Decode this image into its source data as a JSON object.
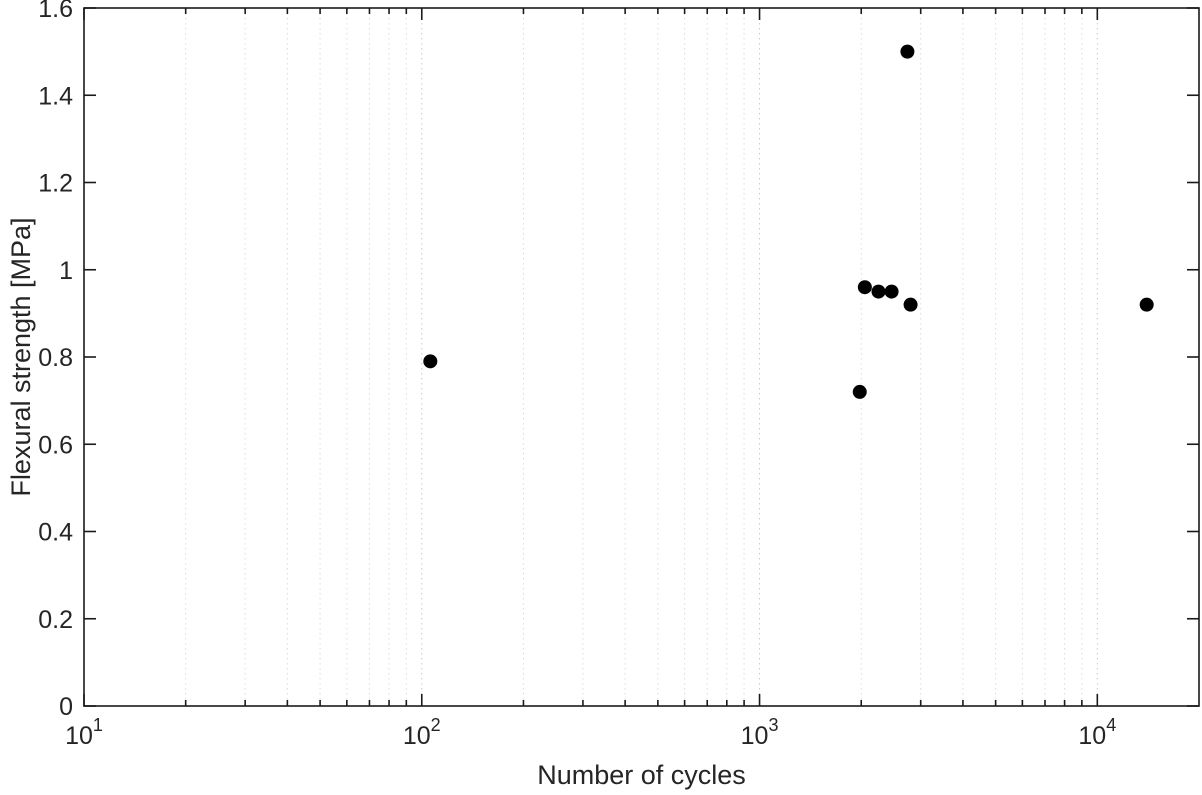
{
  "chart_data": {
    "type": "scatter",
    "title": "",
    "xlabel": "Number of cycles",
    "ylabel": "Flexural strength [MPa]",
    "xscale": "log",
    "yscale": "linear",
    "xlim": [
      10,
      20000
    ],
    "ylim": [
      0,
      1.6
    ],
    "xticks": [
      10,
      100,
      1000,
      10000
    ],
    "xtick_labels": [
      {
        "base": "10",
        "exp": "1"
      },
      {
        "base": "10",
        "exp": "2"
      },
      {
        "base": "10",
        "exp": "3"
      },
      {
        "base": "10",
        "exp": "4"
      }
    ],
    "yticks": [
      0,
      0.2,
      0.4,
      0.6,
      0.8,
      1,
      1.2,
      1.4,
      1.6
    ],
    "ytick_labels": [
      "0",
      "0.2",
      "0.4",
      "0.6",
      "0.8",
      "1",
      "1.2",
      "1.4",
      "1.6"
    ],
    "grid": {
      "x_major": true,
      "x_minor": true,
      "y_major": false,
      "style": "dotted",
      "major_color": "#c9c9c9",
      "minor_color": "#dcdcdc"
    },
    "legend": "none",
    "marker": {
      "shape": "circle",
      "color": "#000000",
      "radius_px": 7
    },
    "axis_color": "#1a1a1a",
    "points": [
      {
        "x": 106,
        "y": 0.79
      },
      {
        "x": 1980,
        "y": 0.72
      },
      {
        "x": 2050,
        "y": 0.96
      },
      {
        "x": 2250,
        "y": 0.95
      },
      {
        "x": 2460,
        "y": 0.95
      },
      {
        "x": 2740,
        "y": 1.5
      },
      {
        "x": 2800,
        "y": 0.92
      },
      {
        "x": 14000,
        "y": 0.92
      }
    ]
  }
}
